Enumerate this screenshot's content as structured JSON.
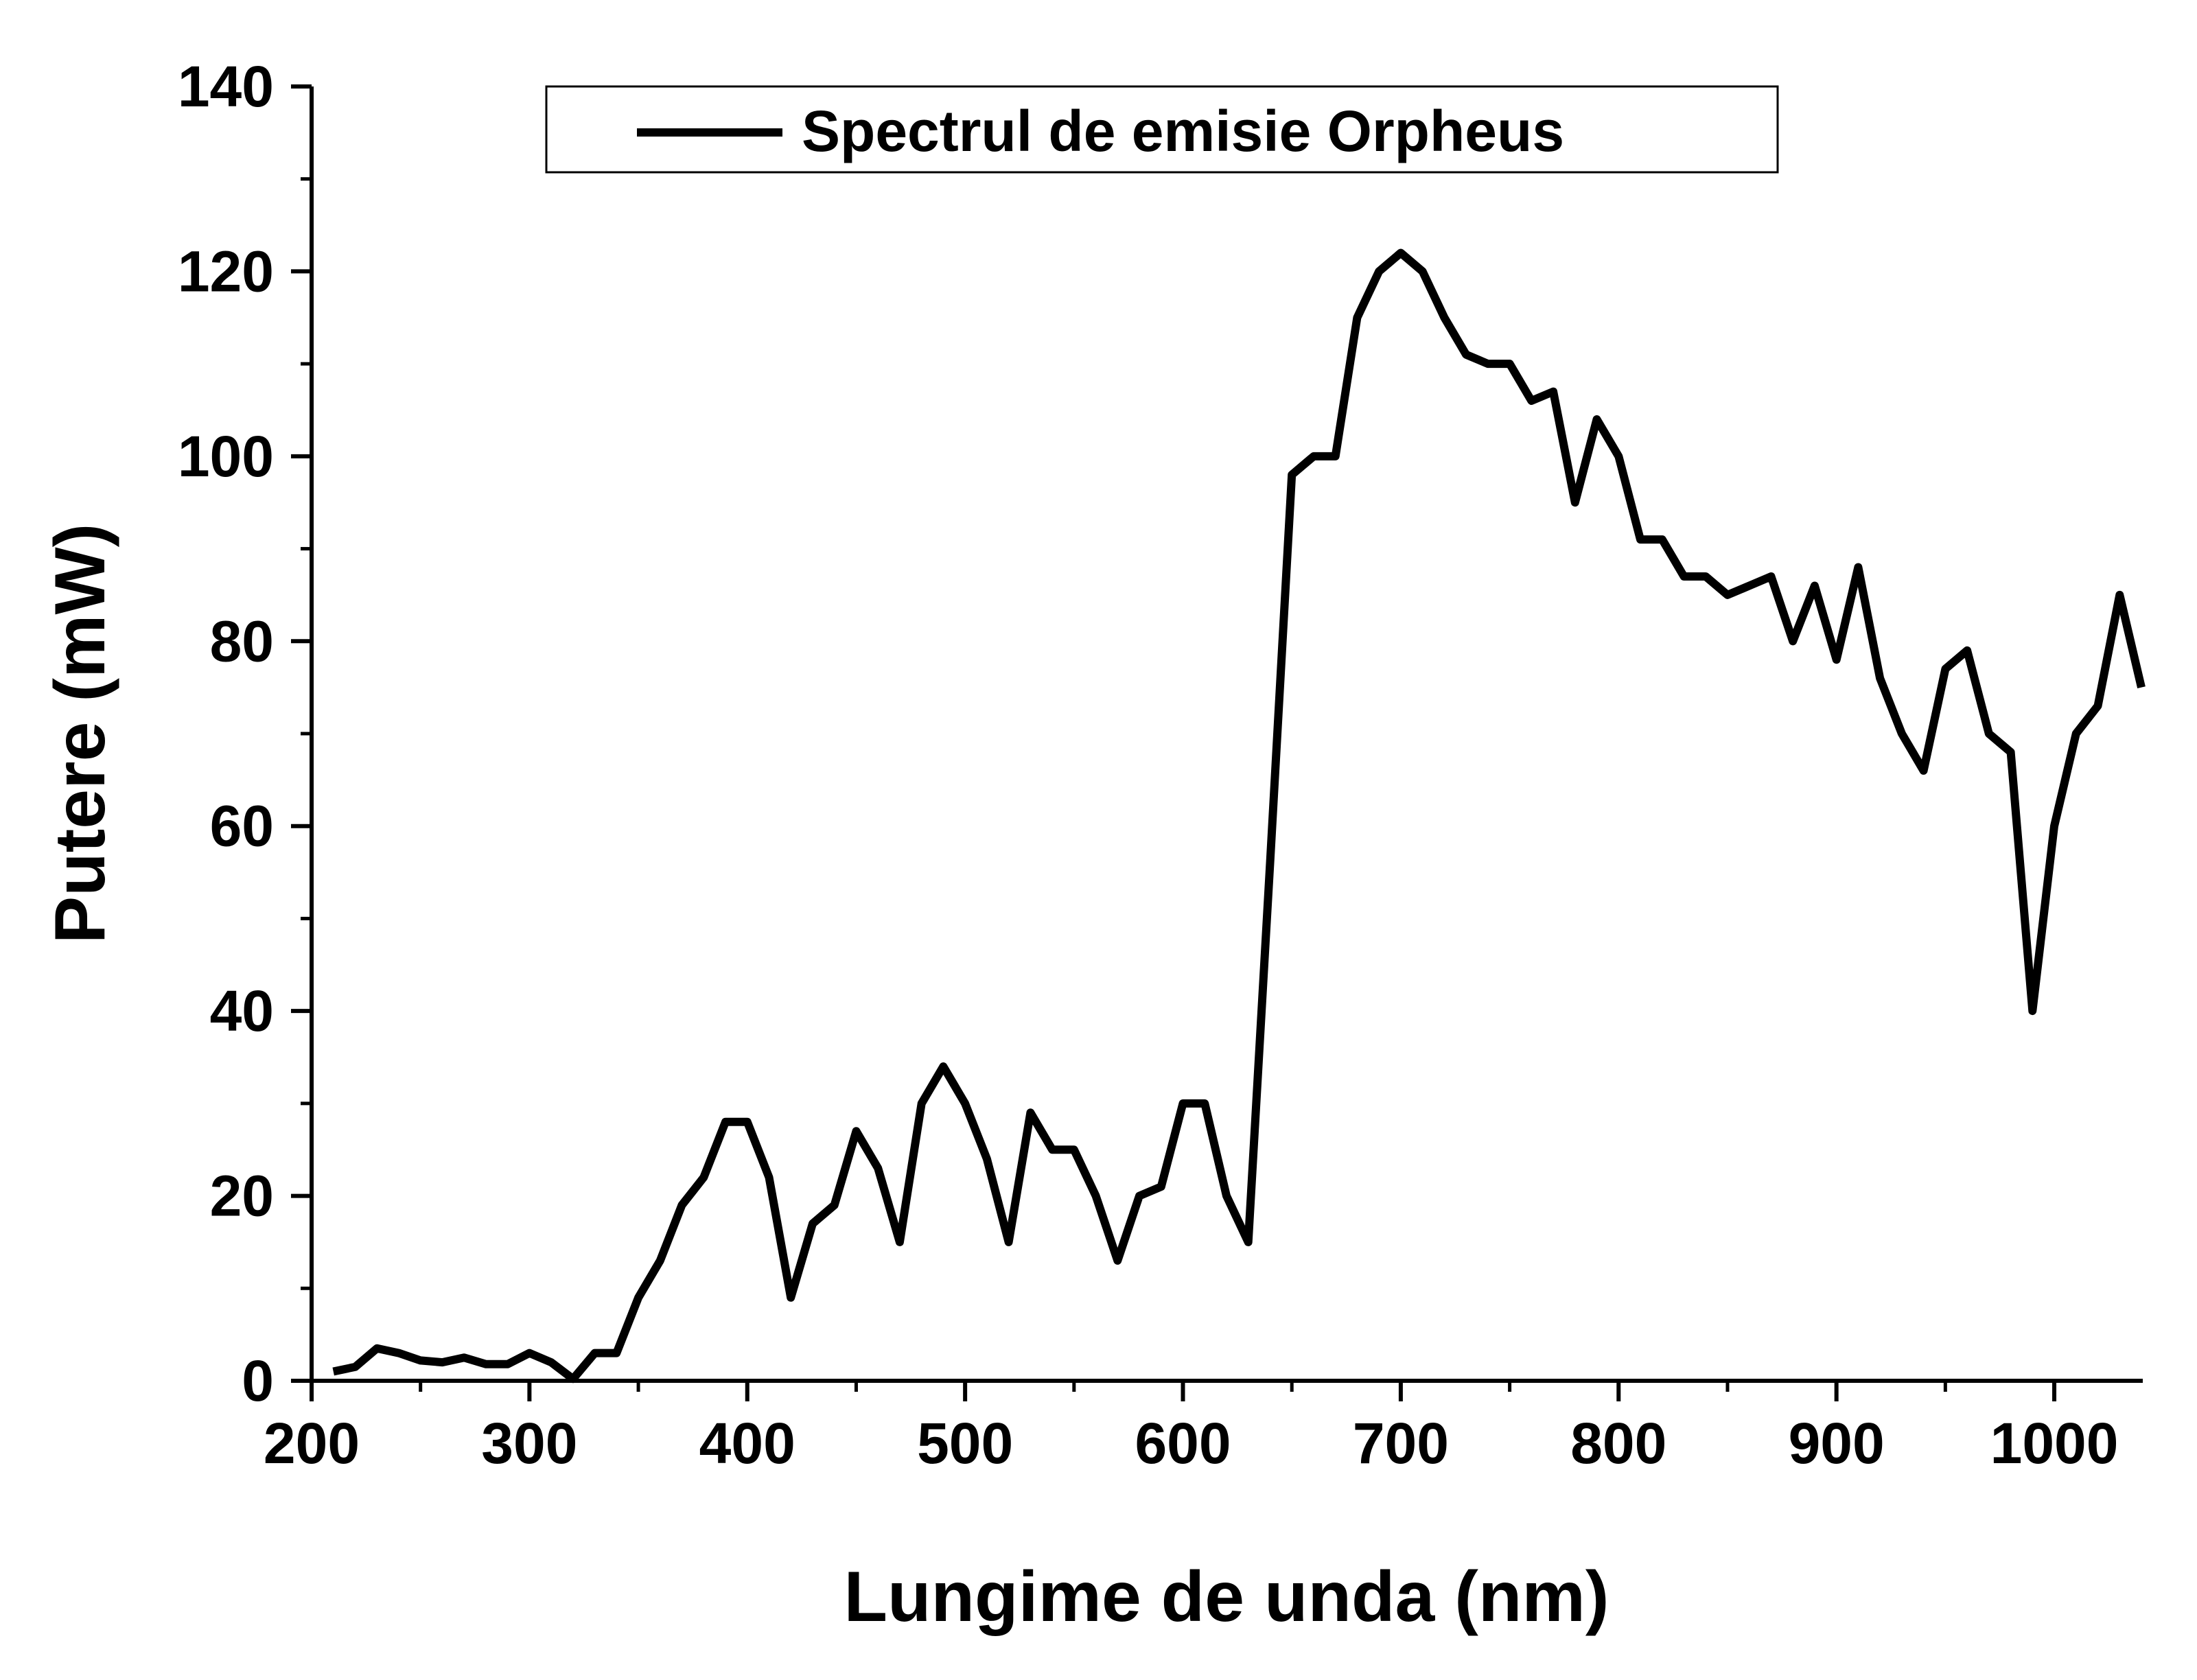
{
  "chart_data": {
    "type": "line",
    "title": "",
    "xlabel": "Lungime de unda (nm)",
    "ylabel": "Putere (mW)",
    "xlim": [
      200,
      1040
    ],
    "ylim": [
      0,
      140
    ],
    "xticks": [
      200,
      300,
      400,
      500,
      600,
      700,
      800,
      900,
      1000
    ],
    "yticks": [
      0,
      20,
      40,
      60,
      80,
      100,
      120,
      140
    ],
    "grid": false,
    "legend_position": "top",
    "line_color": "#000000",
    "series": [
      {
        "name": "Spectrul de emisie Orpheus",
        "x": [
          210,
          220,
          230,
          240,
          250,
          260,
          270,
          280,
          290,
          300,
          310,
          320,
          330,
          340,
          350,
          360,
          370,
          380,
          390,
          400,
          410,
          420,
          430,
          440,
          450,
          460,
          470,
          480,
          490,
          500,
          510,
          520,
          530,
          540,
          550,
          560,
          570,
          580,
          590,
          600,
          610,
          620,
          630,
          640,
          650,
          660,
          670,
          680,
          690,
          700,
          710,
          720,
          730,
          740,
          750,
          760,
          770,
          780,
          790,
          800,
          810,
          820,
          830,
          840,
          850,
          860,
          870,
          880,
          890,
          900,
          910,
          920,
          930,
          940,
          950,
          960,
          970,
          980,
          990,
          1000,
          1010,
          1020,
          1030,
          1040
        ],
        "y": [
          1,
          1.5,
          3.5,
          3,
          2.2,
          2,
          2.5,
          1.8,
          1.8,
          3,
          2,
          0.2,
          3,
          3,
          9,
          13,
          19,
          22,
          28,
          28,
          22,
          9,
          17,
          19,
          27,
          23,
          15,
          30,
          34,
          30,
          24,
          15,
          29,
          25,
          25,
          20,
          13,
          20,
          21,
          30,
          30,
          20,
          15,
          56,
          98,
          100,
          100,
          115,
          120,
          122,
          120,
          115,
          111,
          110,
          110,
          106,
          107,
          95,
          104,
          100,
          91,
          91,
          87,
          87,
          85,
          86,
          87,
          80,
          86,
          78,
          88,
          76,
          70,
          66,
          77,
          79,
          70,
          68,
          40,
          60,
          70,
          73,
          85,
          75
        ]
      }
    ]
  }
}
